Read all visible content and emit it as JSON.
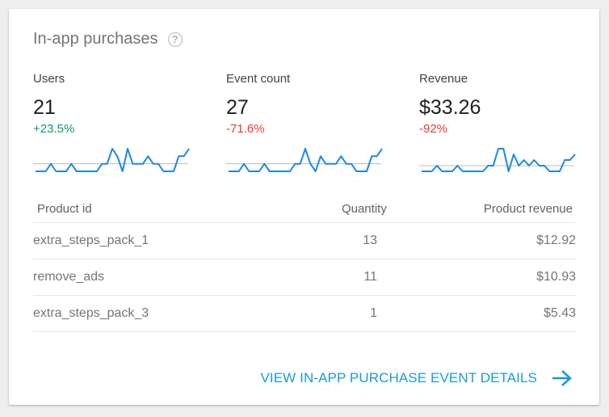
{
  "card": {
    "title": "In-app purchases",
    "help_icon": "help-circle-icon"
  },
  "metrics": [
    {
      "label": "Users",
      "value": "21",
      "change": "+23.5%",
      "change_color": "#0f9d58"
    },
    {
      "label": "Event count",
      "value": "27",
      "change": "-71.6%",
      "change_color": "#e53935"
    },
    {
      "label": "Revenue",
      "value": "$33.26",
      "change": "-92%",
      "change_color": "#e53935"
    }
  ],
  "sparklines": [
    {
      "points": [
        0,
        0,
        0,
        1,
        0,
        0,
        0,
        1,
        0,
        0,
        0,
        0,
        0,
        1,
        1,
        3,
        2,
        0,
        3,
        1,
        1,
        1,
        2,
        1,
        1,
        0,
        0,
        0,
        2,
        2,
        3
      ],
      "baseline": 1
    },
    {
      "points": [
        0,
        0,
        0,
        1,
        0,
        0,
        0,
        1,
        0,
        0,
        0,
        0,
        0,
        1,
        1,
        3,
        1,
        0,
        2,
        1,
        1,
        1,
        2,
        1,
        1,
        0,
        0,
        0,
        2,
        2,
        3
      ],
      "baseline": 1
    },
    {
      "points": [
        0,
        0,
        0,
        1,
        0,
        0,
        0,
        1,
        0,
        0,
        0,
        0,
        0,
        1,
        1,
        4,
        4,
        0,
        3,
        1,
        2,
        1,
        2,
        1,
        1,
        0,
        0,
        0,
        2,
        2,
        3
      ],
      "baseline": 1
    }
  ],
  "sparkline_color": "#1e88e5",
  "table": {
    "headers": {
      "product": "Product id",
      "quantity": "Quantity",
      "revenue": "Product revenue"
    },
    "rows": [
      {
        "product": "extra_steps_pack_1",
        "quantity": "13",
        "revenue": "$12.92"
      },
      {
        "product": "remove_ads",
        "quantity": "11",
        "revenue": "$10.93"
      },
      {
        "product": "extra_steps_pack_3",
        "quantity": "1",
        "revenue": "$5.43"
      }
    ]
  },
  "footer": {
    "link_label": "VIEW IN-APP PURCHASE EVENT DETAILS",
    "icon": "arrow-right-icon"
  }
}
